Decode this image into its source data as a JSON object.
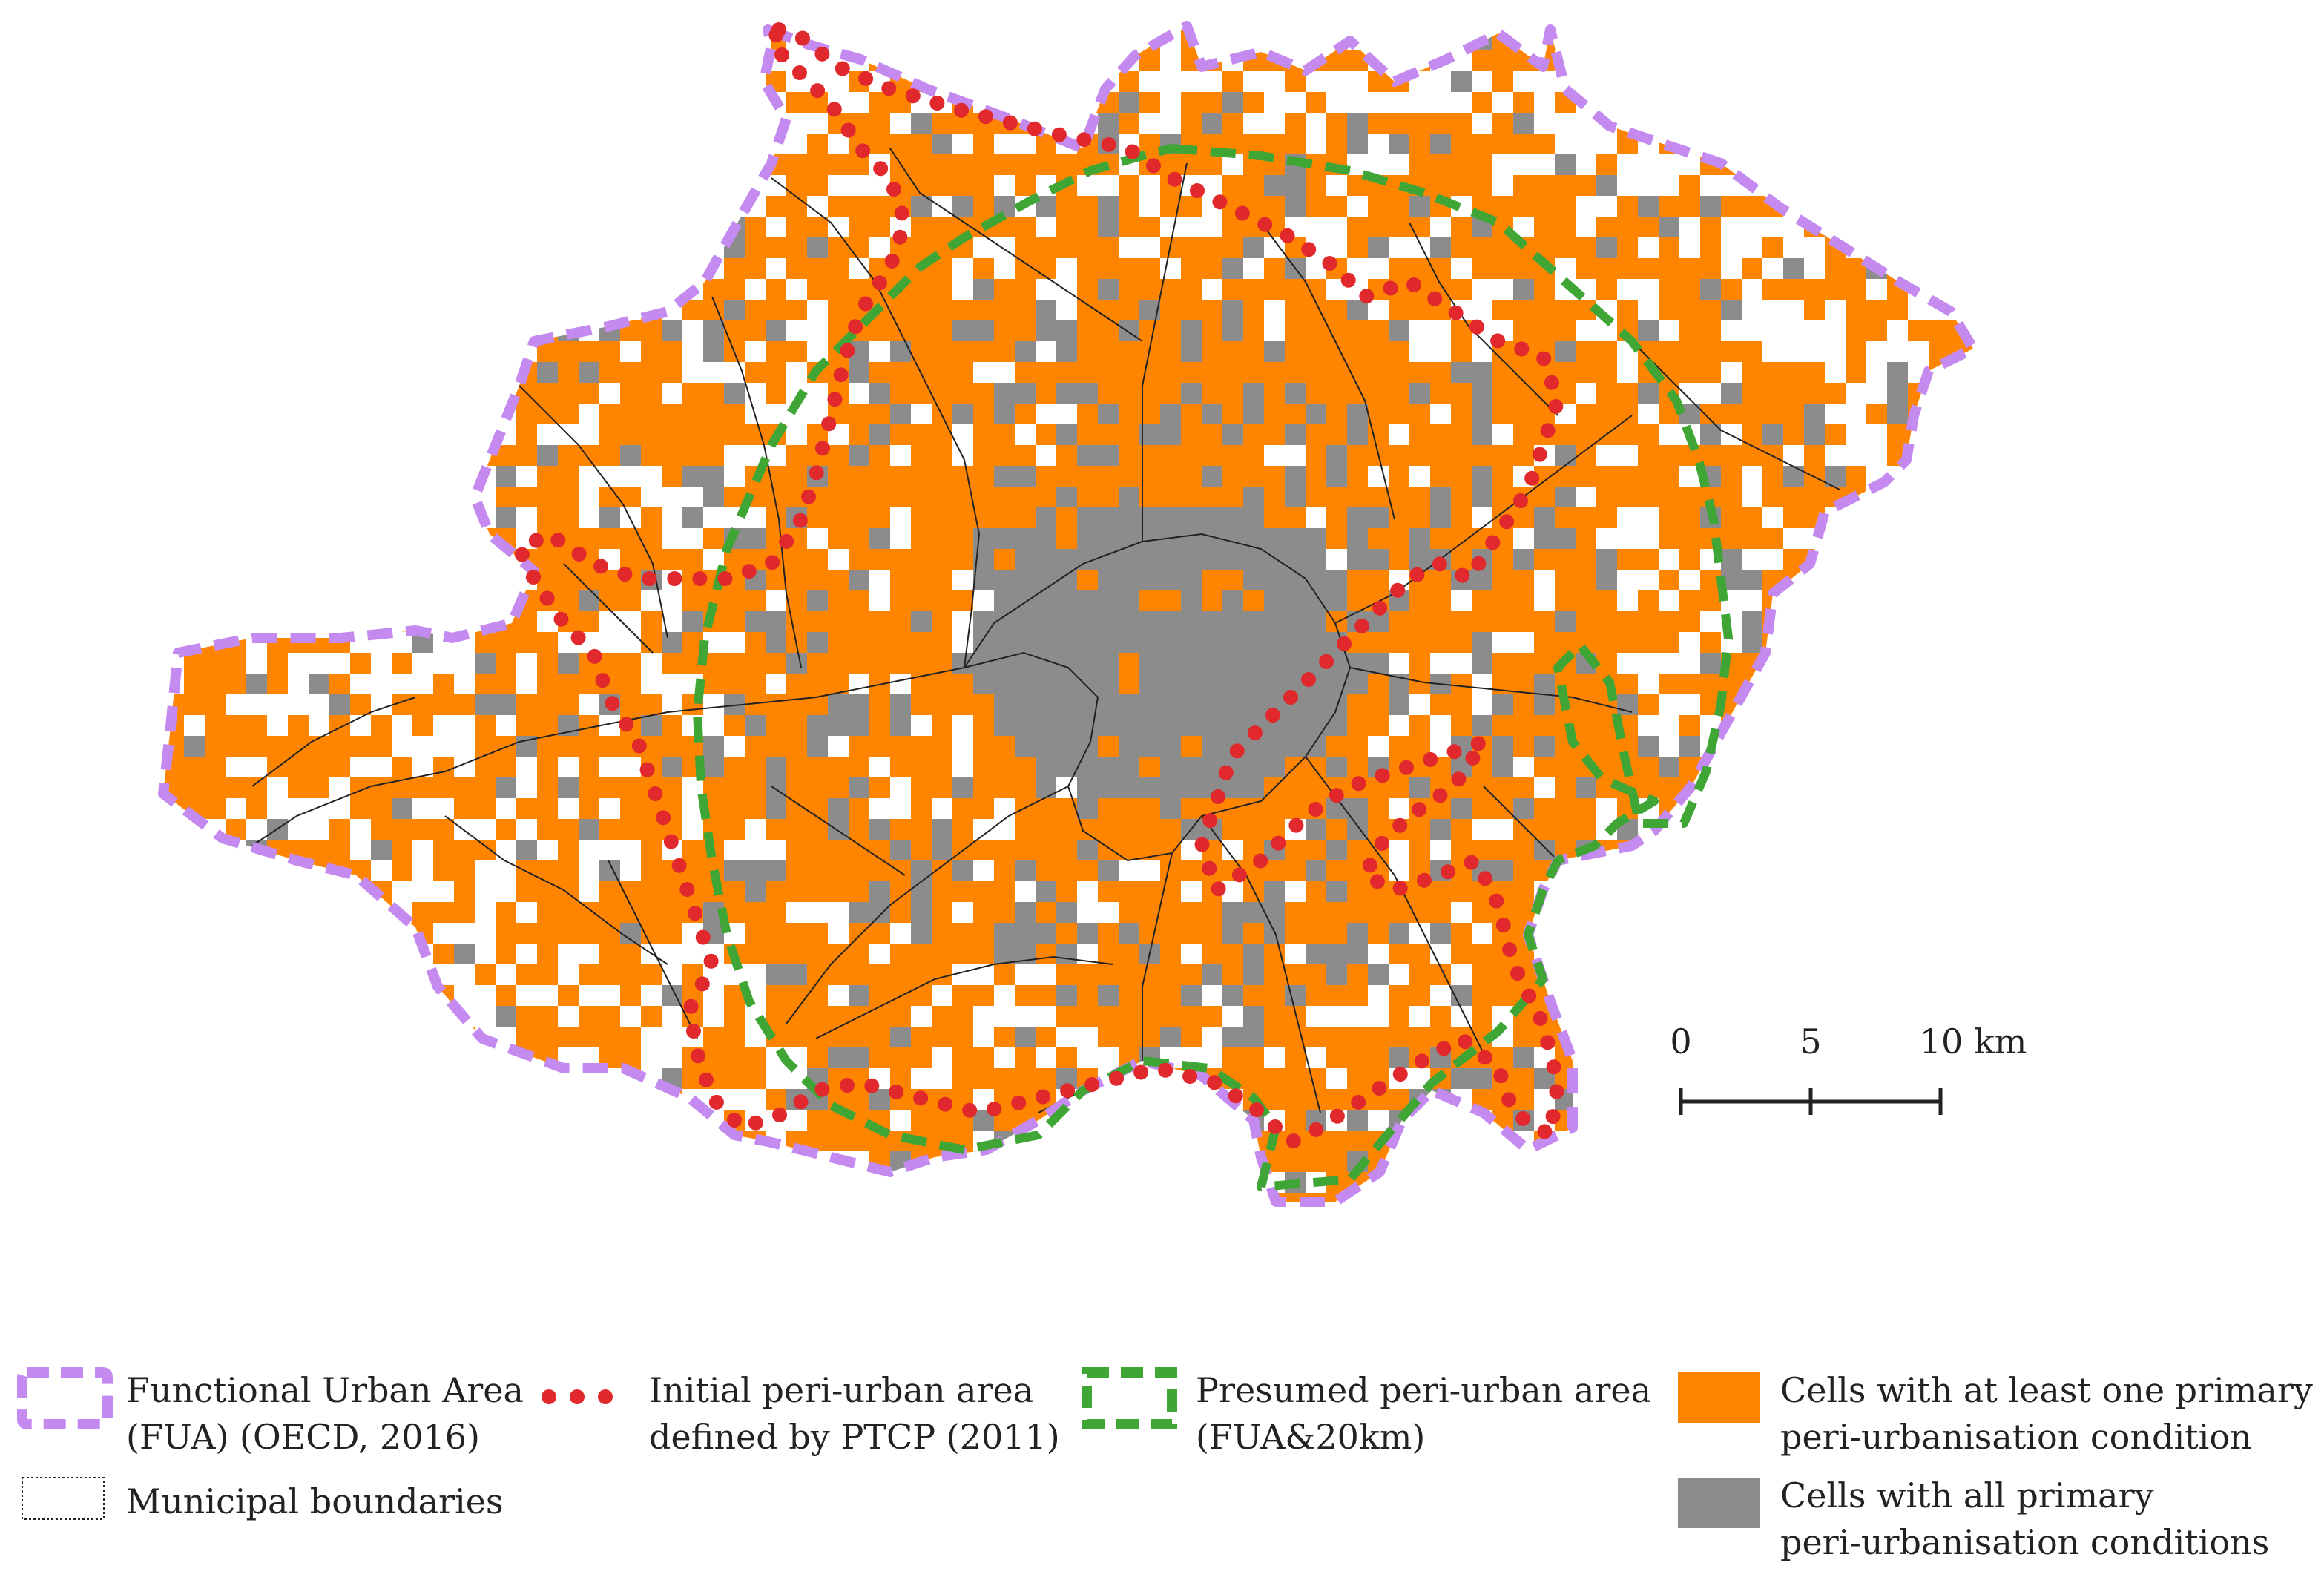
{
  "colors": {
    "fua": "#c58af0",
    "ptcp": "#e0282d",
    "presumed": "#3fa535",
    "orange": "#ff8400",
    "gray": "#8c8c8c",
    "boundary": "#222222"
  },
  "scale_bar": {
    "labels": [
      "0",
      "5",
      "10 km"
    ]
  },
  "legend": {
    "fua_line1": "Functional Urban Area",
    "fua_line2": "(FUA) (OECD, 2016)",
    "municipal": "Municipal boundaries",
    "ptcp_line1": "Initial peri-urban area",
    "ptcp_line2": "defined by PTCP (2011)",
    "presumed_line1": "Presumed peri-urban area",
    "presumed_line2": "(FUA&20km)",
    "orange_line1": "Cells with at least one primary",
    "orange_line2": "peri-urbanisation condition",
    "gray_line1": "Cells with all primary",
    "gray_line2": "peri-urbanisation conditions"
  }
}
